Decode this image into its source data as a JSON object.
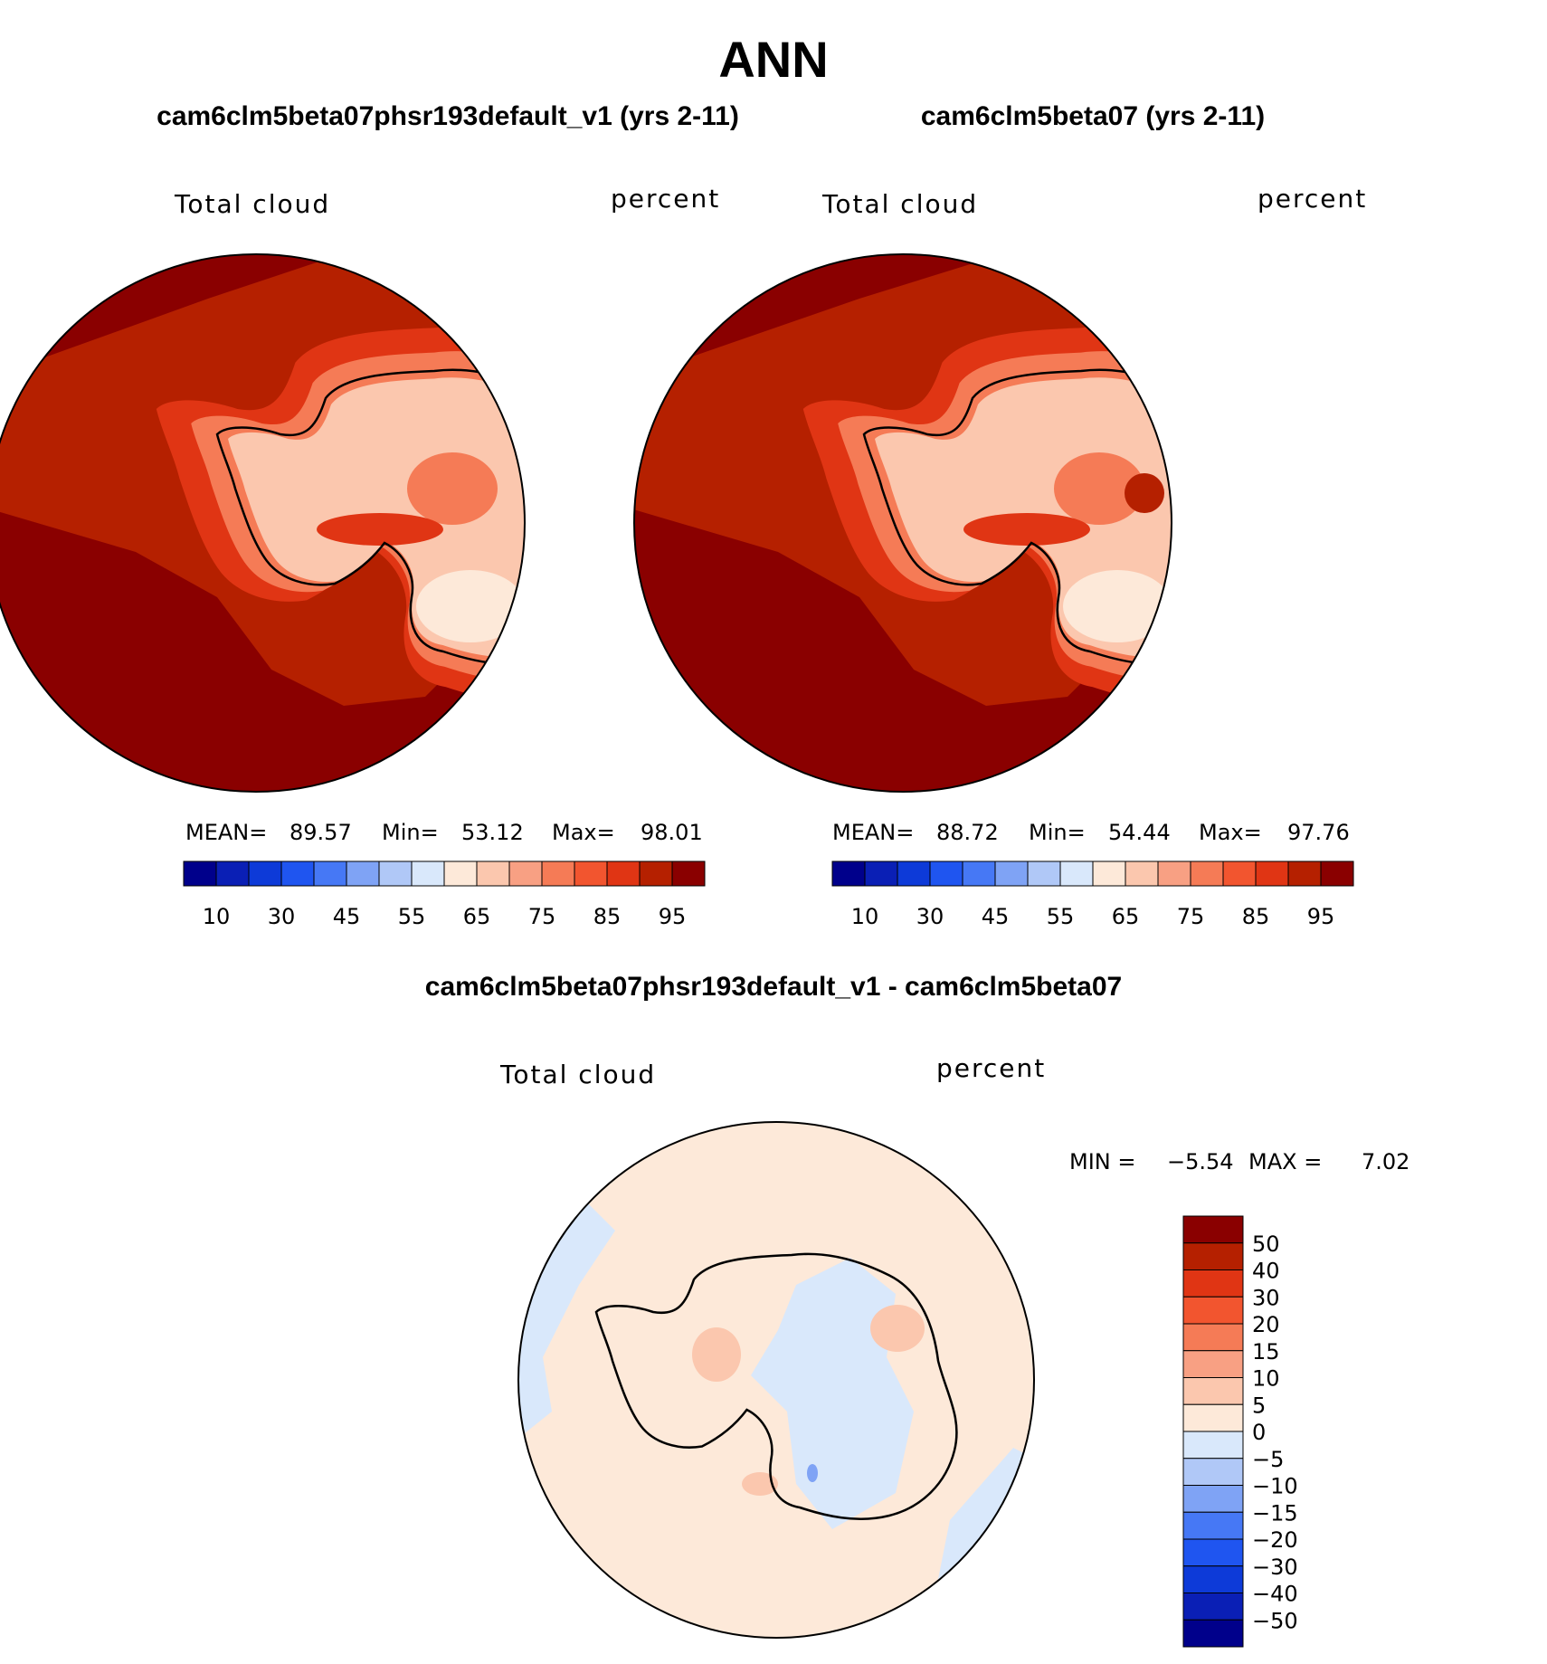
{
  "page": {
    "title": "ANN",
    "diff_title": "cam6clm5beta07phsr193default_v1 - cam6clm5beta07"
  },
  "panels": [
    {
      "id": "left",
      "title": "cam6clm5beta07phsr193default_v1 (yrs 2-11)",
      "variable": "Total cloud",
      "units": "percent",
      "stats": {
        "mean_label": "MEAN=",
        "mean": "89.57",
        "min_label": "Min=",
        "min": "53.12",
        "max_label": "Max=",
        "max": "98.01"
      }
    },
    {
      "id": "right",
      "title": "cam6clm5beta07 (yrs 2-11)",
      "variable": "Total cloud",
      "units": "percent",
      "stats": {
        "mean_label": "MEAN=",
        "mean": "88.72",
        "min_label": "Min=",
        "min": "54.44",
        "max_label": "Max=",
        "max": "97.76"
      }
    }
  ],
  "diff_panel": {
    "variable": "Total cloud",
    "units": "percent",
    "min_label": "MIN =",
    "min": "−5.54",
    "max_label": "MAX =",
    "max": "7.02"
  },
  "colorbar_main": {
    "colors": [
      "#00008b",
      "#0a1fb5",
      "#0d3ad8",
      "#1f55f0",
      "#4678f5",
      "#7fa3f5",
      "#b0c8f7",
      "#d9e8fb",
      "#fde9d9",
      "#fbc7ae",
      "#f8a083",
      "#f57b56",
      "#f2552f",
      "#e03514",
      "#b52000",
      "#8a0000"
    ],
    "tick_labels": [
      "10",
      "30",
      "45",
      "55",
      "65",
      "75",
      "85",
      "95"
    ]
  },
  "colorbar_diff": {
    "colors": [
      "#8a0000",
      "#b52000",
      "#e03514",
      "#f2552f",
      "#f57b56",
      "#f8a083",
      "#fbc7ae",
      "#fde9d9",
      "#d9e8fb",
      "#b0c8f7",
      "#7fa3f5",
      "#4678f5",
      "#1f55f0",
      "#0d3ad8",
      "#0a1fb5",
      "#00008b"
    ],
    "tick_labels": [
      "50",
      "40",
      "30",
      "20",
      "15",
      "10",
      "5",
      "0",
      "−5",
      "−10",
      "−15",
      "−20",
      "−30",
      "−40",
      "−50"
    ]
  },
  "map_colors": {
    "ocean_high": "#8a0000",
    "ocean_mid": "#b52000",
    "coast_mid": "#e03514",
    "ice_mid": "#f57b56",
    "ice_light": "#fbc7ae",
    "ice_pale": "#fde9d9",
    "ice_blue": "#b0c8f7",
    "diff_pos": "#fde9d9",
    "diff_neg": "#d9e8fb",
    "diff_pos2": "#fbc7ae",
    "diff_neg2": "#7fa3f5"
  }
}
